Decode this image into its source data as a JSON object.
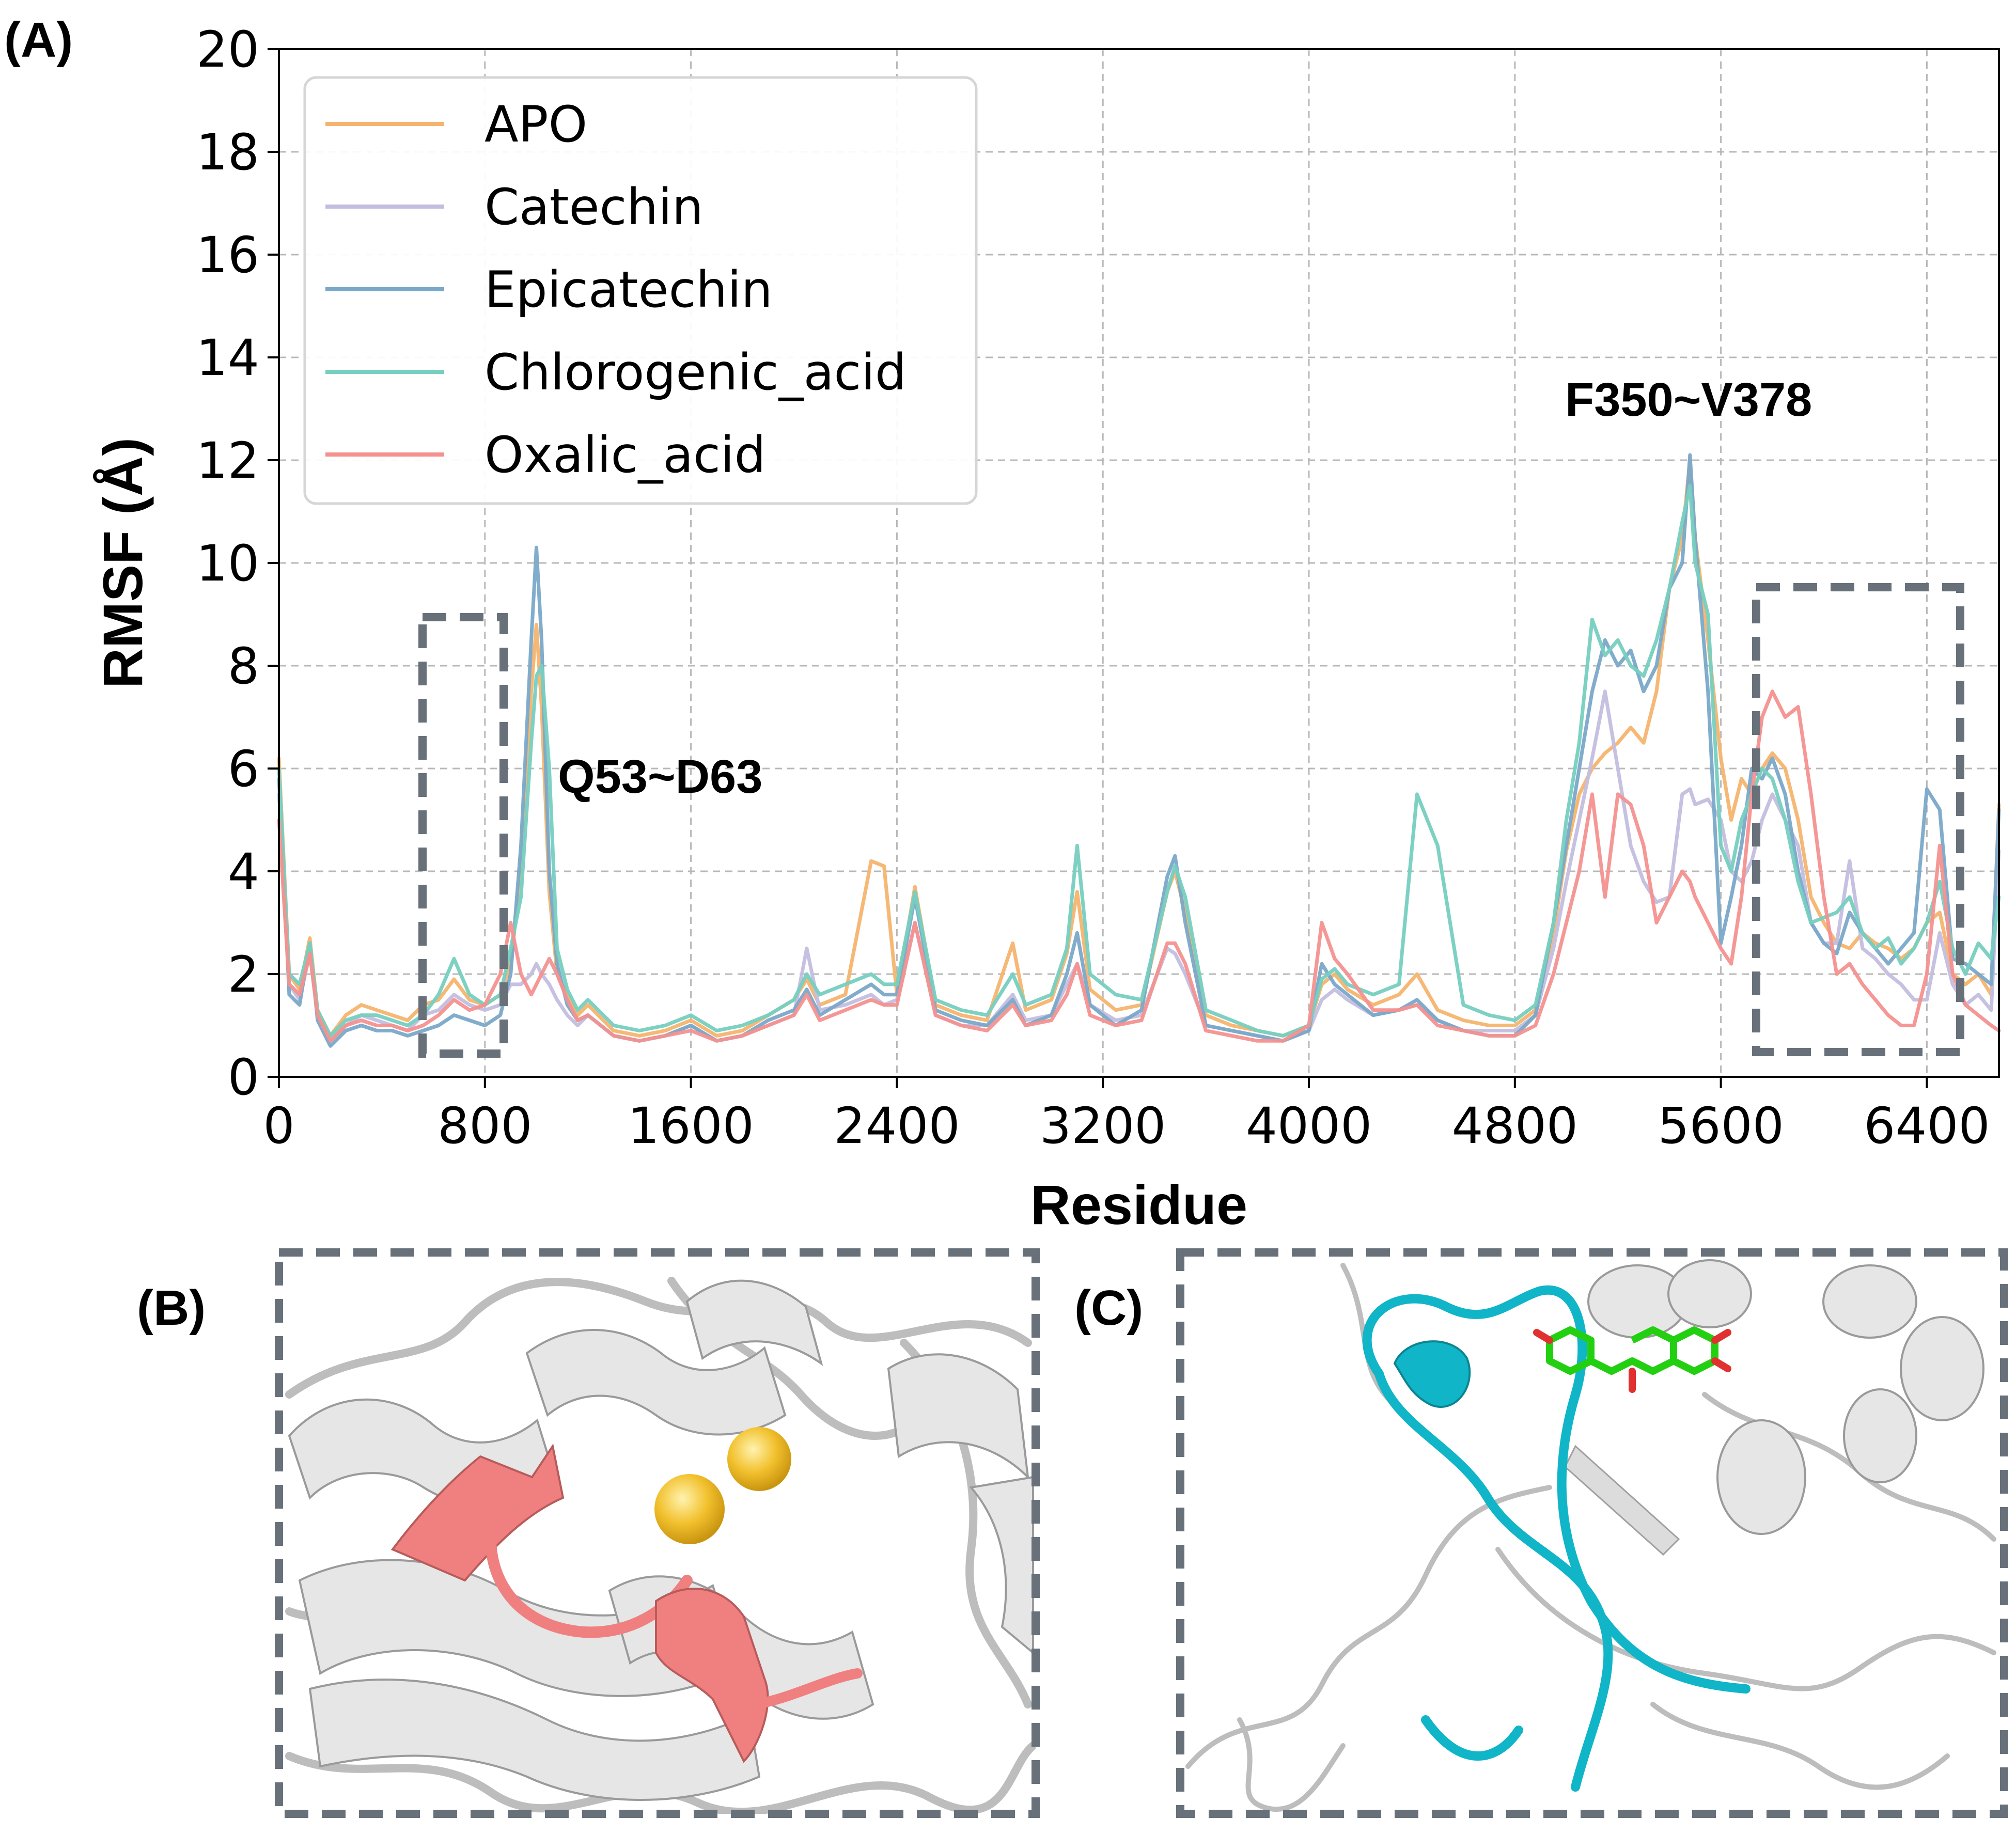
{
  "panels": {
    "a_label": "(A)",
    "b_label": "(B)",
    "c_label": "(C)"
  },
  "colors": {
    "APO": "#f5b46e",
    "Catechin": "#c3bedf",
    "Epicatechin": "#7aa8c8",
    "Chlorogenic_acid": "#76cfc0",
    "Oxalic_acid": "#f4918f",
    "box": "#68717a",
    "region_b": "#f08080",
    "region_c": "#10b5c7",
    "ion": "#f2c12e",
    "ligand": "#22d011"
  },
  "chart_data": {
    "type": "line",
    "xlabel": "Residue",
    "ylabel": "RMSF (Å)",
    "xlim": [
      0,
      6680
    ],
    "ylim": [
      0,
      20
    ],
    "xticks": [
      "0",
      "800",
      "1600",
      "2400",
      "3200",
      "4000",
      "4800",
      "5600",
      "6400"
    ],
    "yticks": [
      "0",
      "2",
      "4",
      "6",
      "8",
      "10",
      "12",
      "14",
      "16",
      "18",
      "20"
    ],
    "grid": true,
    "legend_position": "top-left",
    "annotations": [
      "Q53~D63",
      "F350~V378"
    ],
    "x": [
      0,
      40,
      80,
      120,
      150,
      200,
      260,
      320,
      380,
      440,
      500,
      560,
      620,
      680,
      740,
      800,
      860,
      900,
      940,
      980,
      1000,
      1020,
      1050,
      1080,
      1120,
      1160,
      1200,
      1300,
      1400,
      1500,
      1600,
      1700,
      1800,
      1900,
      2000,
      2050,
      2100,
      2200,
      2300,
      2350,
      2400,
      2470,
      2550,
      2650,
      2750,
      2850,
      2900,
      3000,
      3060,
      3100,
      3150,
      3250,
      3350,
      3450,
      3480,
      3520,
      3600,
      3700,
      3800,
      3900,
      4000,
      4050,
      4100,
      4150,
      4250,
      4350,
      4420,
      4500,
      4600,
      4700,
      4800,
      4880,
      4950,
      5000,
      5050,
      5100,
      5150,
      5200,
      5250,
      5300,
      5350,
      5400,
      5450,
      5480,
      5500,
      5550,
      5600,
      5640,
      5680,
      5720,
      5760,
      5800,
      5850,
      5900,
      5950,
      6000,
      6050,
      6100,
      6150,
      6200,
      6250,
      6300,
      6350,
      6400,
      6450,
      6500,
      6550,
      6600,
      6650,
      6680
    ],
    "series": [
      {
        "name": "APO",
        "values": [
          6.2,
          2.0,
          1.7,
          2.7,
          1.3,
          0.8,
          1.2,
          1.4,
          1.3,
          1.2,
          1.1,
          1.4,
          1.5,
          1.9,
          1.5,
          1.4,
          1.6,
          2.2,
          4.0,
          7.5,
          8.8,
          7.2,
          3.6,
          2.0,
          1.6,
          1.2,
          1.4,
          0.9,
          0.8,
          0.9,
          1.1,
          0.8,
          0.9,
          1.2,
          1.5,
          1.9,
          1.4,
          1.6,
          4.2,
          4.1,
          1.6,
          3.7,
          1.4,
          1.2,
          1.1,
          2.6,
          1.3,
          1.5,
          2.4,
          3.6,
          1.7,
          1.3,
          1.4,
          3.6,
          4.0,
          3.2,
          1.2,
          1.0,
          0.9,
          0.8,
          1.0,
          1.8,
          2.0,
          1.7,
          1.4,
          1.6,
          2.0,
          1.3,
          1.1,
          1.0,
          1.0,
          1.3,
          2.8,
          4.4,
          5.5,
          6.0,
          6.3,
          6.5,
          6.8,
          6.5,
          7.5,
          9.5,
          10.5,
          12.0,
          10.5,
          8.5,
          6.2,
          5.0,
          5.8,
          5.5,
          6.0,
          6.3,
          6.0,
          5.0,
          3.5,
          3.0,
          2.6,
          2.5,
          2.8,
          2.6,
          2.5,
          2.3,
          2.5,
          3.0,
          3.2,
          2.0,
          1.8,
          2.0,
          1.6,
          5.3
        ]
      },
      {
        "name": "Catechin",
        "values": [
          5.5,
          1.8,
          1.5,
          2.4,
          1.2,
          0.7,
          1.0,
          1.2,
          1.1,
          1.0,
          0.9,
          1.2,
          1.3,
          1.6,
          1.4,
          1.3,
          1.4,
          1.8,
          1.8,
          2.0,
          2.2,
          2.0,
          1.8,
          1.5,
          1.2,
          1.0,
          1.2,
          0.8,
          0.7,
          0.8,
          1.0,
          0.7,
          0.8,
          1.0,
          1.2,
          2.5,
          1.3,
          1.4,
          1.6,
          1.4,
          1.5,
          3.0,
          1.2,
          1.0,
          1.0,
          1.6,
          1.1,
          1.2,
          1.8,
          2.2,
          1.4,
          1.1,
          1.2,
          2.5,
          2.4,
          2.0,
          1.0,
          0.9,
          0.8,
          0.7,
          0.9,
          1.5,
          1.7,
          1.5,
          1.2,
          1.3,
          1.4,
          1.1,
          0.9,
          0.9,
          0.9,
          1.2,
          2.5,
          3.8,
          5.0,
          6.2,
          7.5,
          6.0,
          4.5,
          3.8,
          3.4,
          3.5,
          5.5,
          5.6,
          5.3,
          5.4,
          5.0,
          4.0,
          3.8,
          4.2,
          5.0,
          5.5,
          5.0,
          4.5,
          3.0,
          2.6,
          2.6,
          4.2,
          2.5,
          2.3,
          2.0,
          1.8,
          1.5,
          1.5,
          2.8,
          1.8,
          1.4,
          1.6,
          1.3,
          4.4
        ]
      },
      {
        "name": "Epicatechin",
        "values": [
          5.8,
          1.6,
          1.4,
          2.6,
          1.1,
          0.6,
          0.9,
          1.0,
          0.9,
          0.9,
          0.8,
          0.9,
          1.0,
          1.2,
          1.1,
          1.0,
          1.2,
          2.0,
          4.5,
          8.5,
          10.3,
          8.5,
          4.0,
          2.2,
          1.4,
          1.1,
          1.2,
          0.8,
          0.7,
          0.8,
          1.0,
          0.7,
          0.8,
          1.1,
          1.3,
          1.7,
          1.2,
          1.5,
          1.8,
          1.6,
          1.6,
          3.5,
          1.3,
          1.1,
          1.0,
          1.5,
          1.0,
          1.2,
          2.0,
          2.8,
          1.4,
          1.0,
          1.3,
          3.9,
          4.3,
          3.0,
          1.0,
          0.9,
          0.8,
          0.7,
          0.9,
          2.2,
          1.8,
          1.6,
          1.2,
          1.3,
          1.5,
          1.1,
          0.9,
          0.8,
          0.8,
          1.2,
          3.0,
          4.5,
          6.0,
          7.5,
          8.5,
          8.0,
          8.3,
          7.5,
          8.0,
          9.5,
          10.0,
          12.1,
          10.5,
          7.5,
          2.6,
          3.5,
          4.5,
          6.0,
          5.8,
          6.2,
          5.5,
          4.0,
          3.0,
          2.6,
          2.4,
          3.2,
          2.8,
          2.5,
          2.2,
          2.5,
          2.8,
          5.6,
          5.2,
          2.3,
          2.2,
          2.0,
          1.8,
          5.2
        ]
      },
      {
        "name": "Chlorogenic_acid",
        "values": [
          6.0,
          2.0,
          1.8,
          2.6,
          1.3,
          0.8,
          1.1,
          1.2,
          1.2,
          1.1,
          1.0,
          1.2,
          1.6,
          2.3,
          1.6,
          1.4,
          1.6,
          2.5,
          3.5,
          6.5,
          7.8,
          8.0,
          6.0,
          2.5,
          1.7,
          1.3,
          1.5,
          1.0,
          0.9,
          1.0,
          1.2,
          0.9,
          1.0,
          1.2,
          1.5,
          2.0,
          1.6,
          1.8,
          2.0,
          1.8,
          1.8,
          3.6,
          1.5,
          1.3,
          1.2,
          2.0,
          1.4,
          1.6,
          2.5,
          4.5,
          2.0,
          1.6,
          1.5,
          3.6,
          4.1,
          3.5,
          1.3,
          1.1,
          0.9,
          0.8,
          1.0,
          1.9,
          2.1,
          1.8,
          1.6,
          1.8,
          5.5,
          4.5,
          1.4,
          1.2,
          1.1,
          1.4,
          3.0,
          5.0,
          6.5,
          8.9,
          8.2,
          8.5,
          8.0,
          7.8,
          8.5,
          9.5,
          10.8,
          11.5,
          10.0,
          9.0,
          4.5,
          4.0,
          5.0,
          5.5,
          6.0,
          5.8,
          5.0,
          3.8,
          3.0,
          3.1,
          3.2,
          3.5,
          2.8,
          2.5,
          2.7,
          2.2,
          2.5,
          3.0,
          3.8,
          2.5,
          2.0,
          2.6,
          2.3,
          3.5
        ]
      },
      {
        "name": "Oxalic_acid",
        "values": [
          5.0,
          1.8,
          1.6,
          2.4,
          1.2,
          0.7,
          1.0,
          1.1,
          1.0,
          1.0,
          0.9,
          1.0,
          1.2,
          1.5,
          1.3,
          1.4,
          2.0,
          3.0,
          2.0,
          1.6,
          1.8,
          2.0,
          2.3,
          2.0,
          1.5,
          1.1,
          1.2,
          0.8,
          0.7,
          0.8,
          0.9,
          0.7,
          0.8,
          1.0,
          1.2,
          1.6,
          1.1,
          1.3,
          1.5,
          1.4,
          1.4,
          3.0,
          1.2,
          1.0,
          0.9,
          1.4,
          1.0,
          1.1,
          1.6,
          2.2,
          1.2,
          1.0,
          1.1,
          2.6,
          2.6,
          2.2,
          0.9,
          0.8,
          0.7,
          0.7,
          1.0,
          3.0,
          2.3,
          2.0,
          1.3,
          1.3,
          1.4,
          1.0,
          0.9,
          0.8,
          0.8,
          1.0,
          2.0,
          3.0,
          4.0,
          5.5,
          3.5,
          5.5,
          5.3,
          4.5,
          3.0,
          3.5,
          4.0,
          3.8,
          3.5,
          3.0,
          2.5,
          2.2,
          3.5,
          5.5,
          7.0,
          7.5,
          7.0,
          7.2,
          5.5,
          3.5,
          2.0,
          2.2,
          1.8,
          1.5,
          1.2,
          1.0,
          1.0,
          2.0,
          4.5,
          2.0,
          1.4,
          1.2,
          1.0,
          0.9
        ]
      }
    ]
  }
}
